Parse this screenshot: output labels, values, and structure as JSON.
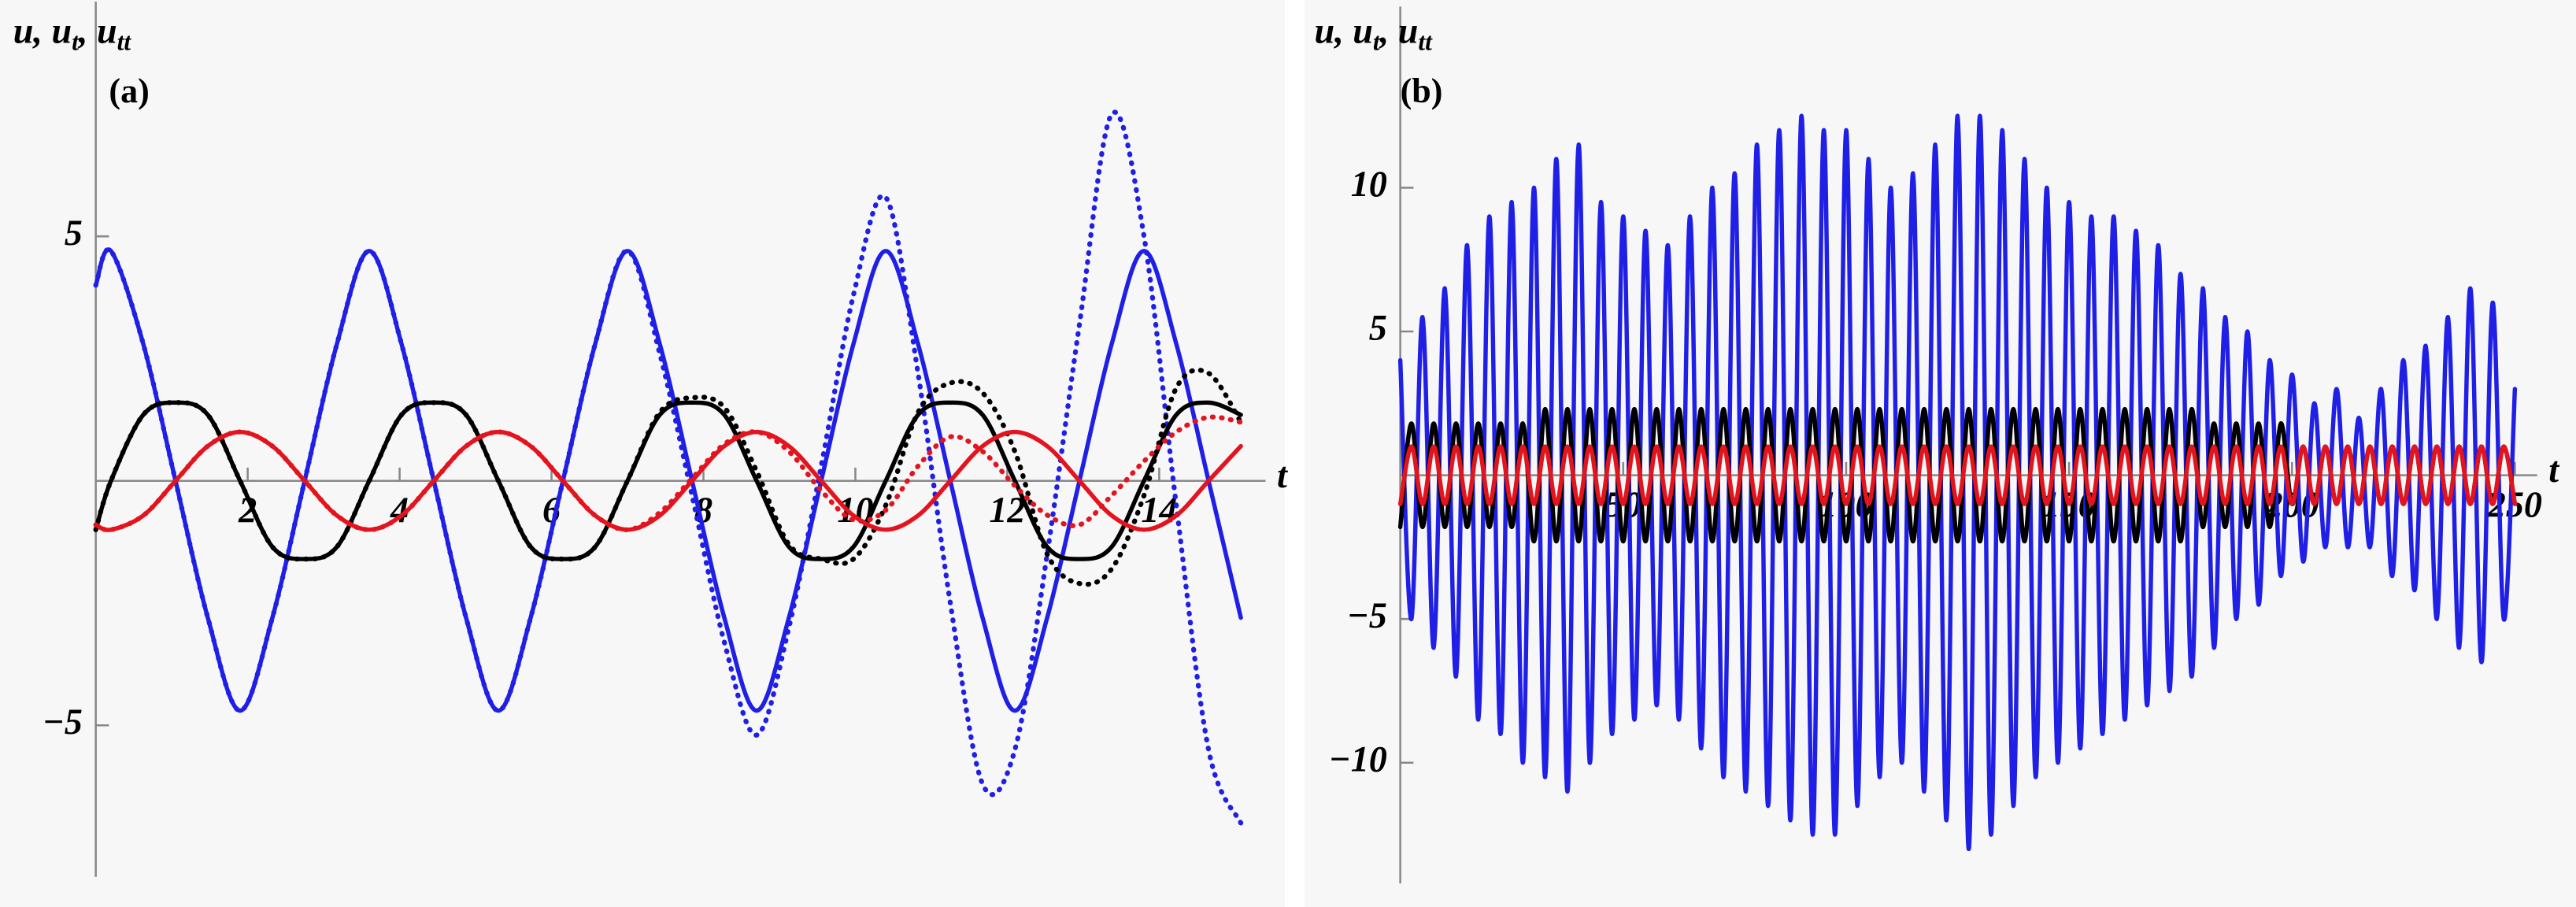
{
  "chart_data": [
    {
      "type": "line",
      "panel_label": "(a)",
      "ylabel": [
        "u, u",
        "t",
        ", u",
        "tt"
      ],
      "xlabel": "t",
      "xlim": [
        0,
        15.4
      ],
      "ylim": [
        -8.1,
        9.8
      ],
      "xticks": [
        2,
        4,
        6,
        8,
        10,
        12,
        14
      ],
      "yticks": [
        {
          "value": -5,
          "label": "−5"
        },
        5
      ],
      "x": [
        0,
        0.2,
        0.625,
        1.05,
        1.475,
        1.9,
        2.325,
        2.75,
        3.175,
        3.6,
        4.025,
        4.45,
        4.875,
        5.3,
        5.725,
        6.15,
        6.575,
        7,
        7.425,
        7.85,
        8.275,
        8.7,
        9.125,
        9.55,
        9.975,
        10.4,
        10.825,
        11.25,
        11.675,
        12.1,
        12.525,
        12.95,
        13.375,
        13.8,
        14.225,
        14.65,
        15.075
      ],
      "series": [
        {
          "color": "#1f1fe6",
          "linestyle": "solid",
          "values": [
            4.0,
            4.7,
            2.8,
            0,
            -2.8,
            -4.7,
            -2.8,
            0,
            2.8,
            4.7,
            2.8,
            0,
            -2.8,
            -4.7,
            -2.8,
            0,
            2.8,
            4.7,
            2.8,
            0,
            -2.8,
            -4.7,
            -2.8,
            0,
            2.8,
            4.7,
            2.8,
            0,
            -2.8,
            -4.7,
            -2.8,
            0,
            2.8,
            4.7,
            2.8,
            0,
            -2.8
          ]
        },
        {
          "color": "#1f1fe6",
          "linestyle": "dotted",
          "values": [
            4.0,
            4.7,
            2.8,
            0,
            -2.8,
            -4.7,
            -2.8,
            0,
            2.8,
            4.7,
            2.8,
            0,
            -2.8,
            -4.7,
            -2.8,
            0,
            2.8,
            4.7,
            2.6,
            -0.3,
            -3.3,
            -5.2,
            -3.0,
            0.3,
            3.8,
            5.8,
            2.2,
            -2.5,
            -6.2,
            -5.5,
            -1.5,
            3.2,
            7.5,
            5.0,
            -0.5,
            -5.5,
            -7.0
          ]
        },
        {
          "color": "#000000",
          "linestyle": "solid",
          "values": [
            -1.0,
            0,
            1.35,
            1.6,
            1.35,
            0,
            -1.35,
            -1.6,
            -1.35,
            0,
            1.35,
            1.6,
            1.35,
            0,
            -1.35,
            -1.6,
            -1.35,
            0,
            1.35,
            1.6,
            1.35,
            0,
            -1.35,
            -1.6,
            -1.35,
            0,
            1.35,
            1.6,
            1.35,
            0,
            -1.35,
            -1.6,
            -1.35,
            0,
            1.35,
            1.6,
            1.35
          ]
        },
        {
          "color": "#000000",
          "linestyle": "dotted",
          "values": [
            -1.0,
            0,
            1.35,
            1.6,
            1.35,
            0,
            -1.35,
            -1.6,
            -1.35,
            0,
            1.35,
            1.6,
            1.35,
            0,
            -1.35,
            -1.6,
            -1.35,
            0,
            1.4,
            1.7,
            1.5,
            0.2,
            -1.3,
            -1.6,
            -1.6,
            -0.5,
            1.4,
            2.0,
            1.8,
            0.6,
            -1.5,
            -2.1,
            -1.8,
            -0.3,
            1.9,
            2.2,
            1.2
          ]
        },
        {
          "color": "#e3141e",
          "linestyle": "solid",
          "values": [
            -0.9,
            -1,
            -0.71,
            0,
            0.71,
            1,
            0.71,
            0,
            -0.71,
            -1,
            -0.71,
            0,
            0.71,
            1,
            0.71,
            0,
            -0.71,
            -1,
            -0.71,
            0,
            0.71,
            1,
            0.71,
            0,
            -0.71,
            -1,
            -0.71,
            0,
            0.71,
            1,
            0.71,
            0,
            -0.71,
            -1,
            -0.71,
            0,
            0.71
          ]
        },
        {
          "color": "#e3141e",
          "linestyle": "dotted",
          "values": [
            -0.9,
            -1,
            -0.71,
            0,
            0.71,
            1,
            0.71,
            0,
            -0.71,
            -1,
            -0.71,
            0,
            0.71,
            1,
            0.71,
            0,
            -0.71,
            -1,
            -0.65,
            0.05,
            0.75,
            1.0,
            0.6,
            -0.2,
            -0.8,
            -0.6,
            0.3,
            0.9,
            0.6,
            -0.1,
            -0.7,
            -0.9,
            -0.3,
            0.4,
            1.0,
            1.3,
            1.2
          ]
        }
      ]
    },
    {
      "type": "line",
      "panel_label": "(b)",
      "ylabel": [
        "u, u",
        "t",
        ", u",
        "tt"
      ],
      "xlabel": "t",
      "xlim": [
        0,
        255
      ],
      "ylim": [
        -14.2,
        16.3
      ],
      "xticks": [
        50,
        100,
        150,
        200,
        250
      ],
      "yticks": [
        {
          "value": -10,
          "label": "−10"
        },
        {
          "value": -5,
          "label": "−5"
        },
        5,
        10
      ],
      "x": [
        0,
        2.5,
        5,
        7.5,
        10,
        12.5,
        15,
        17.5,
        20,
        22.5,
        25,
        27.5,
        30,
        32.5,
        35,
        37.5,
        40,
        42.5,
        45,
        47.5,
        50,
        52.5,
        55,
        57.5,
        60,
        62.5,
        65,
        67.5,
        70,
        72.5,
        75,
        77.5,
        80,
        82.5,
        85,
        87.5,
        90,
        92.5,
        95,
        97.5,
        100,
        102.5,
        105,
        107.5,
        110,
        112.5,
        115,
        117.5,
        120,
        122.5,
        125,
        127.5,
        130,
        132.5,
        135,
        137.5,
        140,
        142.5,
        145,
        147.5,
        150,
        152.5,
        155,
        157.5,
        160,
        162.5,
        165,
        167.5,
        170,
        172.5,
        175,
        177.5,
        180,
        182.5,
        185,
        187.5,
        190,
        192.5,
        195,
        197.5,
        200,
        202.5,
        205,
        207.5,
        210,
        212.5,
        215,
        217.5,
        220,
        222.5,
        225,
        227.5,
        230,
        232.5,
        235,
        237.5,
        240,
        242.5,
        245,
        247.5,
        250
      ],
      "series": [
        {
          "color": "#1f1fe6",
          "linestyle": "solid",
          "values": [
            4,
            -5,
            5.5,
            -6,
            6.5,
            -7,
            8,
            -8.5,
            9,
            -9,
            9.5,
            -10,
            10,
            -10.5,
            11,
            -11,
            11.5,
            -10,
            9.5,
            -9,
            9,
            -8.5,
            8.5,
            -8,
            8,
            -8.5,
            9,
            -9.5,
            10,
            -10.5,
            10.5,
            -11,
            11.5,
            -11.5,
            12,
            -12,
            12.5,
            -12.5,
            12,
            -12.5,
            12,
            -11.5,
            11,
            -10.5,
            10,
            -10,
            10.5,
            -11,
            11.5,
            -12,
            12.5,
            -13,
            12.5,
            -12.5,
            12,
            -11.5,
            11,
            -10.5,
            10,
            -10,
            9.5,
            -9.5,
            9,
            -9,
            9,
            -8.5,
            8.5,
            -8,
            8,
            -7.5,
            7,
            -7,
            6.5,
            -6,
            5.5,
            -5,
            5,
            -4.5,
            4,
            -3.5,
            3.5,
            -3,
            2.5,
            -2.5,
            3,
            -2.5,
            2,
            -2.5,
            3,
            -3.5,
            4,
            -4,
            4.5,
            -5,
            5.5,
            -6,
            6.5,
            -6.5,
            6,
            -5,
            3
          ]
        },
        {
          "color": "#000000",
          "linestyle": "solid",
          "values": [
            -1.8,
            1.8,
            -1.8,
            1.8,
            -1.8,
            1.8,
            -1.8,
            1.8,
            -1.8,
            1.8,
            -1.8,
            1.8,
            -2.3,
            2.3,
            -2.3,
            2.3,
            -2.3,
            2.3,
            -2.3,
            2.3,
            -2.3,
            2.3,
            -2.3,
            2.3,
            -2.3,
            2.3,
            -2.3,
            2.3,
            -2.3,
            2.3,
            -2.3,
            2.3,
            -2.3,
            2.3,
            -2.3,
            2.3,
            -2.3,
            2.3,
            -2.3,
            2.3,
            -2.3,
            2.3,
            -2.3,
            2.3,
            -2.3,
            2.3,
            -2.3,
            2.3,
            -2.3,
            2.3,
            -2.3,
            2.3,
            -2.3,
            2.3,
            -2.3,
            2.3,
            -2.3,
            2.3,
            -2.3,
            2.3,
            -2.3,
            2.3,
            -2.3,
            2.3,
            -2.3,
            2.3,
            -2.3,
            2.3,
            -2.3,
            2.3,
            -2.3,
            2.3,
            -1.8,
            1.8,
            -1.8,
            1.8,
            -1.8,
            1.8,
            -1.8,
            1.8,
            -1,
            1,
            -1,
            1,
            -1,
            1,
            -1,
            1,
            -1,
            1,
            -1,
            1,
            -1,
            1,
            -1,
            1,
            -1,
            1,
            -1,
            1,
            -1
          ]
        },
        {
          "color": "#e3141e",
          "linestyle": "solid",
          "values": [
            -1,
            1,
            -1,
            1,
            -1,
            1,
            -1,
            1,
            -1,
            1,
            -1,
            1,
            -1,
            1,
            -1,
            1,
            -1,
            1,
            -1,
            1,
            -1,
            1,
            -1,
            1,
            -1,
            1,
            -1,
            1,
            -1,
            1,
            -1,
            1,
            -1,
            1,
            -1,
            1,
            -1,
            1,
            -1,
            1,
            -1,
            1,
            -1,
            1,
            -1,
            1,
            -1,
            1,
            -1,
            1,
            -1,
            1,
            -1,
            1,
            -1,
            1,
            -1,
            1,
            -1,
            1,
            -1,
            1,
            -1,
            1,
            -1,
            1,
            -1,
            1,
            -1,
            1,
            -1,
            1,
            -1,
            1,
            -1,
            1,
            -1,
            1,
            -1,
            1,
            -1,
            1,
            -1,
            1,
            -1,
            1,
            -1,
            1,
            -1,
            1,
            -1,
            1,
            -1,
            1,
            -1,
            1,
            -1,
            1,
            -1,
            1,
            -1
          ]
        }
      ]
    }
  ]
}
